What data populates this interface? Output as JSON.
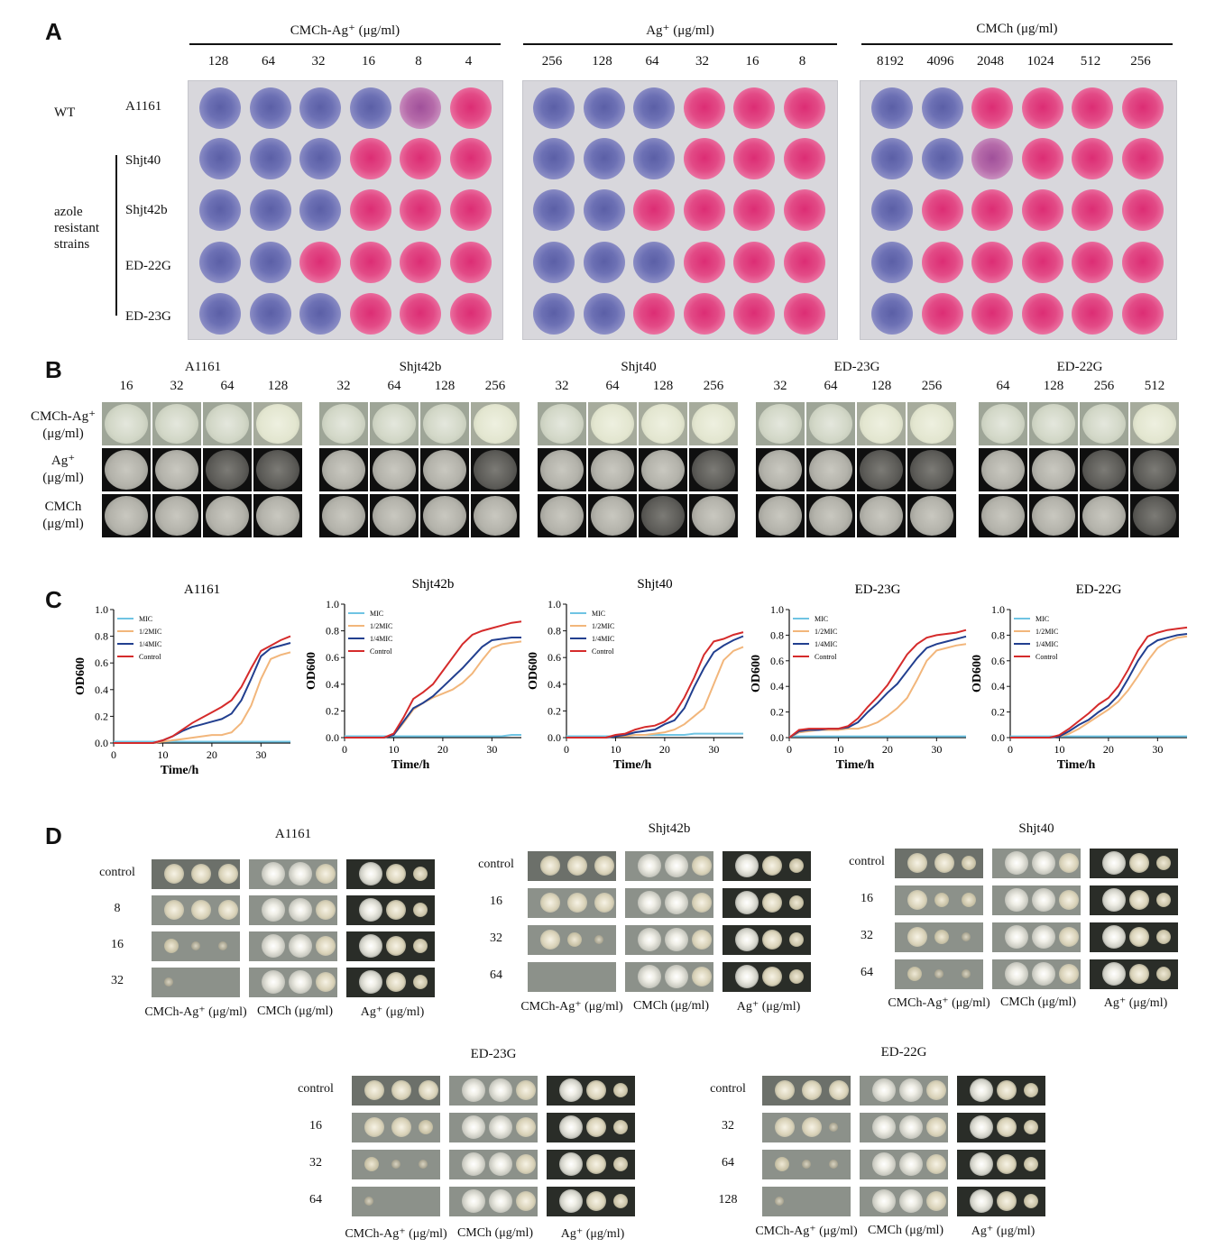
{
  "panels": {
    "A": "A",
    "B": "B",
    "C": "C",
    "D": "D"
  },
  "panelA": {
    "groups": [
      {
        "header": "CMCh-Ag⁺ (μg/ml)",
        "concs": [
          "128",
          "64",
          "32",
          "16",
          "8",
          "4"
        ]
      },
      {
        "header": "Ag⁺ (μg/ml)",
        "concs": [
          "256",
          "128",
          "64",
          "32",
          "16",
          "8"
        ]
      },
      {
        "header": "CMCh (μg/ml)",
        "concs": [
          "8192",
          "4096",
          "2048",
          "1024",
          "512",
          "256"
        ]
      }
    ],
    "wt_label": "WT",
    "resistant_label": [
      "azole",
      "resistant",
      "strains"
    ],
    "strains": [
      "A1161",
      "Shjt40",
      "Shjt42b",
      "ED-22G",
      "ED-23G"
    ],
    "wells": [
      [
        "bbbbmp",
        "bbbppp",
        "bbpppp"
      ],
      [
        "bbbppp",
        "bbbppp",
        "bbmppp"
      ],
      [
        "bbbppp",
        "bbpppp",
        "bppppp"
      ],
      [
        "bbpppp",
        "bbbppp",
        "bppppp"
      ],
      [
        "bbbppp",
        "bbpppp",
        "bppppp"
      ]
    ]
  },
  "panelB": {
    "row_labels": [
      "CMCh-Ag⁺",
      "(μg/ml)",
      "Ag⁺",
      "(μg/ml)",
      "CMCh",
      "(μg/ml)"
    ],
    "strains": [
      {
        "name": "A1161",
        "concs": [
          "16",
          "32",
          "64",
          "128"
        ]
      },
      {
        "name": "Shjt42b",
        "concs": [
          "32",
          "64",
          "128",
          "256"
        ]
      },
      {
        "name": "Shjt40",
        "concs": [
          "32",
          "64",
          "128",
          "256"
        ]
      },
      {
        "name": "ED-23G",
        "concs": [
          "32",
          "64",
          "128",
          "256"
        ]
      },
      {
        "name": "ED-22G",
        "concs": [
          "64",
          "128",
          "256",
          "512"
        ]
      }
    ]
  },
  "panelC": {
    "chart_data": [
      {
        "type": "line",
        "title": "A1161",
        "xlabel": "Time/h",
        "ylabel": "OD600",
        "xlim": [
          0,
          36
        ],
        "ylim": [
          0,
          1.0
        ],
        "x": [
          0,
          2,
          4,
          6,
          8,
          10,
          12,
          14,
          16,
          18,
          20,
          22,
          24,
          26,
          28,
          30,
          32,
          34,
          36
        ],
        "series": [
          {
            "name": "MIC",
            "color": "#6fc4e3",
            "values": [
              0.01,
              0.01,
              0.01,
              0.01,
              0.01,
              0.01,
              0.01,
              0.01,
              0.01,
              0.01,
              0.01,
              0.01,
              0.01,
              0.01,
              0.01,
              0.01,
              0.01,
              0.01,
              0.01
            ]
          },
          {
            "name": "1/2MIC",
            "color": "#f2b67b",
            "values": [
              0.0,
              0.0,
              0.0,
              0.0,
              0.0,
              0.01,
              0.02,
              0.03,
              0.04,
              0.05,
              0.06,
              0.06,
              0.08,
              0.15,
              0.28,
              0.48,
              0.63,
              0.66,
              0.68
            ]
          },
          {
            "name": "1/4MIC",
            "color": "#223f8f",
            "values": [
              0.0,
              0.0,
              0.0,
              0.0,
              0.0,
              0.02,
              0.05,
              0.09,
              0.12,
              0.14,
              0.16,
              0.18,
              0.22,
              0.32,
              0.48,
              0.65,
              0.71,
              0.73,
              0.75
            ]
          },
          {
            "name": "Control",
            "color": "#d52b2b",
            "values": [
              0.0,
              0.0,
              0.0,
              0.0,
              0.0,
              0.02,
              0.05,
              0.1,
              0.15,
              0.19,
              0.23,
              0.27,
              0.32,
              0.42,
              0.56,
              0.69,
              0.73,
              0.77,
              0.8
            ]
          }
        ]
      },
      {
        "type": "line",
        "title": "Shjt42b",
        "xlabel": "Time/h",
        "ylabel": "OD600",
        "xlim": [
          0,
          36
        ],
        "ylim": [
          0,
          1.0
        ],
        "x": [
          0,
          2,
          4,
          6,
          8,
          10,
          12,
          14,
          16,
          18,
          20,
          22,
          24,
          26,
          28,
          30,
          32,
          34,
          36
        ],
        "series": [
          {
            "name": "MIC",
            "color": "#6fc4e3",
            "values": [
              0.01,
              0.01,
              0.01,
              0.01,
              0.01,
              0.01,
              0.01,
              0.01,
              0.01,
              0.01,
              0.01,
              0.01,
              0.01,
              0.01,
              0.01,
              0.01,
              0.01,
              0.02,
              0.02
            ]
          },
          {
            "name": "1/2MIC",
            "color": "#f2b67b",
            "values": [
              0.0,
              0.0,
              0.0,
              0.0,
              0.0,
              0.02,
              0.11,
              0.21,
              0.26,
              0.3,
              0.33,
              0.36,
              0.41,
              0.48,
              0.58,
              0.67,
              0.7,
              0.71,
              0.72
            ]
          },
          {
            "name": "1/4MIC",
            "color": "#223f8f",
            "values": [
              0.0,
              0.0,
              0.0,
              0.0,
              0.0,
              0.02,
              0.12,
              0.22,
              0.26,
              0.31,
              0.38,
              0.45,
              0.52,
              0.6,
              0.68,
              0.73,
              0.74,
              0.75,
              0.75
            ]
          },
          {
            "name": "Control",
            "color": "#d52b2b",
            "values": [
              0.0,
              0.0,
              0.0,
              0.0,
              0.0,
              0.03,
              0.15,
              0.29,
              0.34,
              0.4,
              0.5,
              0.6,
              0.7,
              0.77,
              0.8,
              0.82,
              0.84,
              0.86,
              0.87
            ]
          }
        ]
      },
      {
        "type": "line",
        "title": "Shjt40",
        "xlabel": "Time/h",
        "ylabel": "OD600",
        "xlim": [
          0,
          36
        ],
        "ylim": [
          0,
          1.0
        ],
        "x": [
          0,
          2,
          4,
          6,
          8,
          10,
          12,
          14,
          16,
          18,
          20,
          22,
          24,
          26,
          28,
          30,
          32,
          34,
          36
        ],
        "series": [
          {
            "name": "MIC",
            "color": "#6fc4e3",
            "values": [
              0.01,
              0.01,
              0.01,
              0.01,
              0.01,
              0.01,
              0.02,
              0.02,
              0.02,
              0.02,
              0.02,
              0.02,
              0.02,
              0.03,
              0.03,
              0.03,
              0.03,
              0.03,
              0.03
            ]
          },
          {
            "name": "1/2MIC",
            "color": "#f2b67b",
            "values": [
              0.0,
              0.0,
              0.0,
              0.0,
              0.0,
              0.01,
              0.01,
              0.02,
              0.02,
              0.03,
              0.04,
              0.06,
              0.1,
              0.16,
              0.22,
              0.4,
              0.58,
              0.65,
              0.68
            ]
          },
          {
            "name": "1/4MIC",
            "color": "#223f8f",
            "values": [
              0.0,
              0.0,
              0.0,
              0.0,
              0.0,
              0.01,
              0.02,
              0.04,
              0.05,
              0.06,
              0.1,
              0.13,
              0.22,
              0.38,
              0.52,
              0.64,
              0.69,
              0.73,
              0.76
            ]
          },
          {
            "name": "Control",
            "color": "#d52b2b",
            "values": [
              0.0,
              0.0,
              0.0,
              0.0,
              0.0,
              0.02,
              0.03,
              0.06,
              0.08,
              0.09,
              0.12,
              0.18,
              0.3,
              0.45,
              0.62,
              0.72,
              0.74,
              0.77,
              0.79
            ]
          }
        ]
      },
      {
        "type": "line",
        "title": "ED-23G",
        "xlabel": "Time/h",
        "ylabel": "OD600",
        "xlim": [
          0,
          36
        ],
        "ylim": [
          0,
          1.0
        ],
        "x": [
          0,
          2,
          4,
          6,
          8,
          10,
          12,
          14,
          16,
          18,
          20,
          22,
          24,
          26,
          28,
          30,
          32,
          34,
          36
        ],
        "series": [
          {
            "name": "MIC",
            "color": "#6fc4e3",
            "values": [
              0.01,
              0.01,
              0.01,
              0.01,
              0.01,
              0.01,
              0.01,
              0.01,
              0.01,
              0.01,
              0.01,
              0.01,
              0.01,
              0.01,
              0.01,
              0.01,
              0.01,
              0.01,
              0.01
            ]
          },
          {
            "name": "1/2MIC",
            "color": "#f2b67b",
            "values": [
              0.0,
              0.04,
              0.05,
              0.06,
              0.06,
              0.06,
              0.07,
              0.07,
              0.09,
              0.12,
              0.17,
              0.23,
              0.31,
              0.45,
              0.6,
              0.68,
              0.7,
              0.72,
              0.73
            ]
          },
          {
            "name": "1/4MIC",
            "color": "#223f8f",
            "values": [
              0.0,
              0.05,
              0.06,
              0.06,
              0.07,
              0.07,
              0.08,
              0.12,
              0.2,
              0.27,
              0.35,
              0.42,
              0.52,
              0.62,
              0.7,
              0.73,
              0.75,
              0.77,
              0.79
            ]
          },
          {
            "name": "Control",
            "color": "#d52b2b",
            "values": [
              0.0,
              0.06,
              0.07,
              0.07,
              0.07,
              0.07,
              0.09,
              0.15,
              0.24,
              0.32,
              0.41,
              0.53,
              0.65,
              0.73,
              0.78,
              0.8,
              0.81,
              0.82,
              0.84
            ]
          }
        ]
      },
      {
        "type": "line",
        "title": "ED-22G",
        "xlabel": "Time/h",
        "ylabel": "OD600",
        "xlim": [
          0,
          36
        ],
        "ylim": [
          0,
          1.0
        ],
        "x": [
          0,
          2,
          4,
          6,
          8,
          10,
          12,
          14,
          16,
          18,
          20,
          22,
          24,
          26,
          28,
          30,
          32,
          34,
          36
        ],
        "series": [
          {
            "name": "MIC",
            "color": "#6fc4e3",
            "values": [
              0.01,
              0.01,
              0.01,
              0.01,
              0.01,
              0.01,
              0.01,
              0.01,
              0.01,
              0.01,
              0.01,
              0.01,
              0.01,
              0.01,
              0.01,
              0.01,
              0.01,
              0.01,
              0.01
            ]
          },
          {
            "name": "1/2MIC",
            "color": "#f2b67b",
            "values": [
              0.0,
              0.0,
              0.0,
              0.0,
              0.0,
              0.01,
              0.03,
              0.07,
              0.12,
              0.17,
              0.22,
              0.28,
              0.37,
              0.48,
              0.6,
              0.7,
              0.75,
              0.78,
              0.79
            ]
          },
          {
            "name": "1/4MIC",
            "color": "#223f8f",
            "values": [
              0.0,
              0.0,
              0.0,
              0.0,
              0.0,
              0.01,
              0.05,
              0.1,
              0.14,
              0.2,
              0.25,
              0.33,
              0.46,
              0.6,
              0.71,
              0.76,
              0.78,
              0.8,
              0.81
            ]
          },
          {
            "name": "Control",
            "color": "#d52b2b",
            "values": [
              0.0,
              0.0,
              0.0,
              0.0,
              0.0,
              0.02,
              0.07,
              0.13,
              0.19,
              0.26,
              0.31,
              0.4,
              0.53,
              0.68,
              0.79,
              0.82,
              0.84,
              0.85,
              0.86
            ]
          }
        ]
      }
    ],
    "y_ticks": [
      "0.0",
      "0.2",
      "0.4",
      "0.6",
      "0.8",
      "1.0"
    ],
    "x_ticks": [
      "0",
      "10",
      "20",
      "30"
    ]
  },
  "panelD": {
    "groups": [
      {
        "title": "A1161",
        "rows": [
          "control",
          "8",
          "16",
          "32"
        ]
      },
      {
        "title": "Shjt42b",
        "rows": [
          "control",
          "16",
          "32",
          "64"
        ]
      },
      {
        "title": "Shjt40",
        "rows": [
          "control",
          "16",
          "32",
          "64"
        ]
      },
      {
        "title": "ED-23G",
        "rows": [
          "control",
          "16",
          "32",
          "64"
        ]
      },
      {
        "title": "ED-22G",
        "rows": [
          "control",
          "32",
          "64",
          "128"
        ]
      }
    ],
    "col_labels": [
      "CMCh-Ag⁺ (μg/ml)",
      "CMCh (μg/ml)",
      "Ag⁺ (μg/ml)"
    ]
  }
}
